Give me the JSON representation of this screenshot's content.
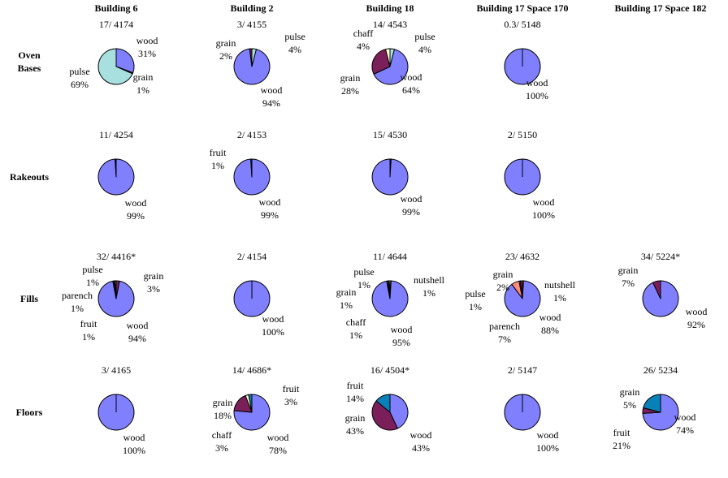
{
  "colors": {
    "wood": "#8080ff",
    "pulse": "#a8e0e0",
    "grain": "#7a1f5a",
    "chaff": "#ffffc8",
    "fruit": "#0a80b8",
    "parench": "#ff8a80",
    "nutshell": "#ffffc8",
    "outline": "#000000"
  },
  "chart_data": {
    "type": "pie",
    "columns": [
      "Building 6",
      "Building 2",
      "Building 18",
      "Building 17 Space 170",
      "Building 17 Space 182"
    ],
    "rows": [
      "Oven Bases",
      "Rakeouts",
      "Fills",
      "Floors"
    ],
    "pies": [
      {
        "row": "Oven Bases",
        "column": "Building 6",
        "title": "17/ 4174",
        "slices": [
          {
            "name": "wood",
            "value": 31,
            "label": "31%"
          },
          {
            "name": "grain",
            "value": 1,
            "label": "1%"
          },
          {
            "name": "pulse",
            "value": 69,
            "label": "69%"
          }
        ]
      },
      {
        "row": "Oven Bases",
        "column": "Building 2",
        "title": "3/ 4155",
        "slices": [
          {
            "name": "pulse",
            "value": 4,
            "label": "4%"
          },
          {
            "name": "wood",
            "value": 94,
            "label": "94%"
          },
          {
            "name": "grain",
            "value": 2,
            "label": "2%"
          }
        ]
      },
      {
        "row": "Oven Bases",
        "column": "Building 18",
        "title": "14/ 4543",
        "slices": [
          {
            "name": "pulse",
            "value": 4,
            "label": "4%"
          },
          {
            "name": "wood",
            "value": 64,
            "label": "64%"
          },
          {
            "name": "grain",
            "value": 28,
            "label": "28%"
          },
          {
            "name": "chaff",
            "value": 4,
            "label": "4%"
          }
        ]
      },
      {
        "row": "Oven Bases",
        "column": "Building 17 Space 170",
        "title": "0.3/ 5148",
        "slices": [
          {
            "name": "wood",
            "value": 100,
            "label": "100%"
          }
        ]
      },
      {
        "row": "Rakeouts",
        "column": "Building 6",
        "title": "11/ 4254",
        "slices": [
          {
            "name": "wood",
            "value": 99,
            "label": "99%"
          },
          {
            "name": "other",
            "value": 1,
            "label": ""
          }
        ]
      },
      {
        "row": "Rakeouts",
        "column": "Building 2",
        "title": "2/ 4153",
        "slices": [
          {
            "name": "wood",
            "value": 99,
            "label": "99%"
          },
          {
            "name": "fruit",
            "value": 1,
            "label": "1%"
          }
        ]
      },
      {
        "row": "Rakeouts",
        "column": "Building 18",
        "title": "15/ 4530",
        "slices": [
          {
            "name": "other",
            "value": 1,
            "label": ""
          },
          {
            "name": "wood",
            "value": 99,
            "label": "99%"
          }
        ]
      },
      {
        "row": "Rakeouts",
        "column": "Building 17 Space 170",
        "title": "2/ 5150",
        "slices": [
          {
            "name": "wood",
            "value": 100,
            "label": "100%"
          }
        ]
      },
      {
        "row": "Fills",
        "column": "Building 6",
        "title": "32/ 4416*",
        "slices": [
          {
            "name": "grain",
            "value": 3,
            "label": "3%"
          },
          {
            "name": "wood",
            "value": 94,
            "label": "94%"
          },
          {
            "name": "fruit",
            "value": 1,
            "label": "1%"
          },
          {
            "name": "parench",
            "value": 1,
            "label": "1%"
          },
          {
            "name": "pulse",
            "value": 1,
            "label": "1%"
          }
        ]
      },
      {
        "row": "Fills",
        "column": "Building 2",
        "title": "2/ 4154",
        "slices": [
          {
            "name": "wood",
            "value": 100,
            "label": "100%"
          }
        ]
      },
      {
        "row": "Fills",
        "column": "Building 18",
        "title": "11/ 4644",
        "slices": [
          {
            "name": "nutshell",
            "value": 1,
            "label": "1%"
          },
          {
            "name": "wood",
            "value": 95,
            "label": "95%"
          },
          {
            "name": "chaff",
            "value": 1,
            "label": "1%"
          },
          {
            "name": "grain",
            "value": 1,
            "label": "1%"
          },
          {
            "name": "pulse",
            "value": 1,
            "label": "1%"
          }
        ]
      },
      {
        "row": "Fills",
        "column": "Building 17 Space 170",
        "title": "23/ 4632",
        "slices": [
          {
            "name": "nutshell",
            "value": 1,
            "label": "1%"
          },
          {
            "name": "wood",
            "value": 88,
            "label": "88%"
          },
          {
            "name": "parench",
            "value": 7,
            "label": "7%"
          },
          {
            "name": "pulse",
            "value": 1,
            "label": "1%"
          },
          {
            "name": "grain",
            "value": 2,
            "label": "2%"
          }
        ]
      },
      {
        "row": "Fills",
        "column": "Building 17 Space 182",
        "title": "34/ 5224*",
        "slices": [
          {
            "name": "wood",
            "value": 92,
            "label": "92%"
          },
          {
            "name": "grain",
            "value": 7,
            "label": "7%"
          }
        ]
      },
      {
        "row": "Floors",
        "column": "Building 6",
        "title": "3/ 4165",
        "slices": [
          {
            "name": "wood",
            "value": 100,
            "label": "100%"
          }
        ]
      },
      {
        "row": "Floors",
        "column": "Building 2",
        "title": "14/ 4686*",
        "slices": [
          {
            "name": "wood",
            "value": 78,
            "label": "78%"
          },
          {
            "name": "grain",
            "value": 18,
            "label": "18%"
          },
          {
            "name": "chaff",
            "value": 3,
            "label": "3%"
          },
          {
            "name": "fruit",
            "value": 3,
            "label": "3%"
          }
        ]
      },
      {
        "row": "Floors",
        "column": "Building 18",
        "title": "16/ 4504*",
        "slices": [
          {
            "name": "wood",
            "value": 43,
            "label": "43%"
          },
          {
            "name": "grain",
            "value": 43,
            "label": "43%"
          },
          {
            "name": "fruit",
            "value": 14,
            "label": "14%"
          }
        ]
      },
      {
        "row": "Floors",
        "column": "Building 17 Space 170",
        "title": "2/ 5147",
        "slices": [
          {
            "name": "wood",
            "value": 100,
            "label": "100%"
          }
        ]
      },
      {
        "row": "Floors",
        "column": "Building 17 Space 182",
        "title": "26/ 5234",
        "slices": [
          {
            "name": "wood",
            "value": 74,
            "label": "74%"
          },
          {
            "name": "grain",
            "value": 5,
            "label": "5%"
          },
          {
            "name": "fruit",
            "value": 21,
            "label": "21%"
          }
        ]
      }
    ]
  }
}
